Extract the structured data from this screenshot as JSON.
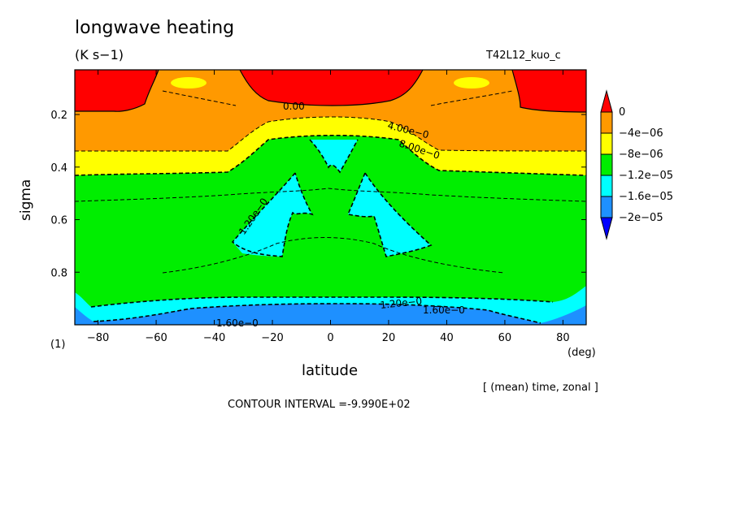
{
  "chart_data": {
    "type": "heatmap",
    "title": "longwave heating",
    "units": "(K s−1)",
    "run_label": "T42L12_kuo_c",
    "xlabel": "latitude",
    "x_units": "(deg)",
    "ylabel": "sigma",
    "panel_label": "(1)",
    "averaging_note": "[ (mean) time, zonal ]",
    "contour_interval_text": "CONTOUR INTERVAL =-9.990E+02",
    "xlim": [
      -88,
      88
    ],
    "ylim": [
      1.0,
      0.03
    ],
    "x_ticks": [
      -80,
      -60,
      -40,
      -20,
      0,
      20,
      40,
      60,
      80
    ],
    "x_tick_labels": [
      "−80",
      "−60",
      "−40",
      "−20",
      "0",
      "20",
      "40",
      "60",
      "80"
    ],
    "y_ticks": [
      0.2,
      0.4,
      0.6,
      0.8
    ],
    "y_tick_labels": [
      "0.2",
      "0.4",
      "0.6",
      "0.8"
    ],
    "colorbar": {
      "labels": [
        "0",
        "−4e−06",
        "−8e−06",
        "−1.2e−05",
        "−1.6e−05",
        "−2e−05"
      ],
      "levels": [
        0,
        -4e-06,
        -8e-06,
        -1.2e-05,
        -1.6e-05,
        -2e-05
      ],
      "colors": [
        "#ff0000",
        "#ff9900",
        "#ffff00",
        "#00ee00",
        "#00ffff",
        "#1e90ff",
        "#0000ff"
      ]
    },
    "contour_labels": [
      "0.00",
      "4.00e−0",
      "8.00e−0",
      "1.20e−0",
      "1.20e−0",
      "1.60e−0",
      "1.60e−0"
    ],
    "regions": [
      {
        "level": "0 to -4e-06",
        "description": "upper layer sigma < ~0.3"
      },
      {
        "level": "> 0",
        "description": "polar caps and equatorial band near sigma 0.05-0.15"
      },
      {
        "level": "-4e-06 to -8e-06",
        "description": "thin band sigma ~0.28-0.38"
      },
      {
        "level": "-8e-06 to -1.2e-05",
        "description": "mid troposphere"
      },
      {
        "level": "-1.2e-05 to -1.6e-05",
        "description": "tropical upper pockets and near-surface layer"
      },
      {
        "level": "< -1.6e-05",
        "description": "near-surface band sigma > 0.93"
      }
    ]
  }
}
